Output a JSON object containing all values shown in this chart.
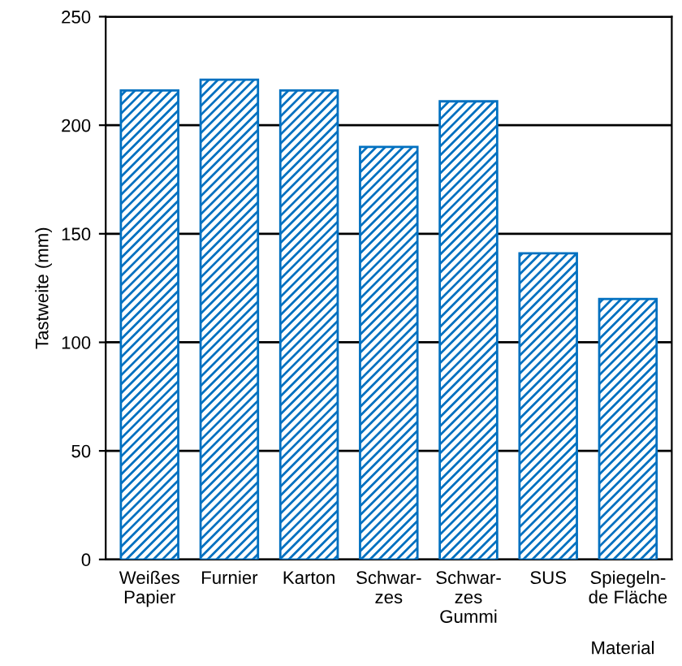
{
  "chart_data": {
    "type": "bar",
    "categories": [
      "Weißes\nPapier",
      "Furnier",
      "Karton",
      "Schwar-\nzes",
      "Schwar-\nzes\nGummi",
      "SUS",
      "Spiegeln-\nde Fläche"
    ],
    "values": [
      216,
      221,
      216,
      190,
      211,
      141,
      120
    ],
    "color": "#0070c0",
    "xlabel": "Material",
    "ylabel": "Tastweite (mm)",
    "ylim": [
      0,
      250
    ],
    "yticks": [
      0,
      50,
      100,
      150,
      200,
      250
    ],
    "grid": "y"
  }
}
